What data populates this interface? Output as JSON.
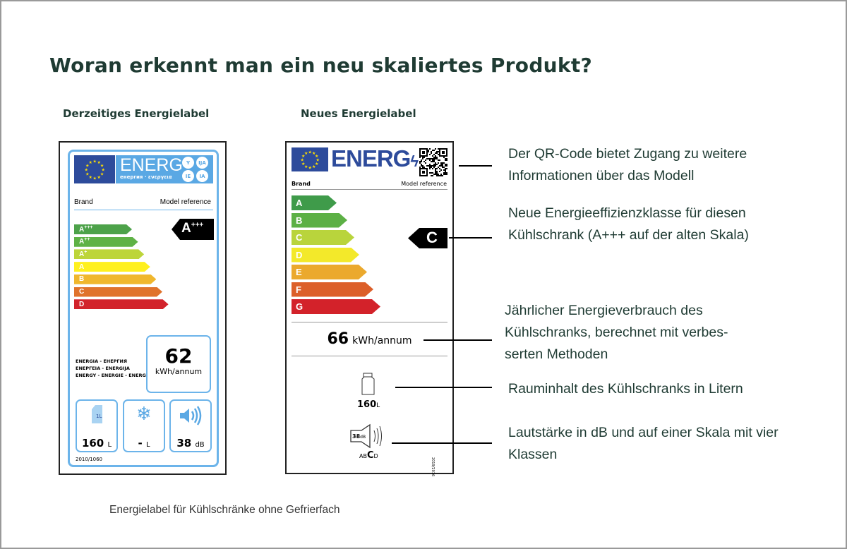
{
  "title": "Woran erkennt man ein neu skaliertes Produkt?",
  "old_label": {
    "heading": "Derzeitiges Energielabel",
    "energ": "ENERG",
    "energ_sub": "енергия · ενεργεια",
    "lang_badges": [
      "Y",
      "IJA",
      "IE",
      "IA"
    ],
    "brand": "Brand",
    "model": "Model reference",
    "classes": [
      {
        "label": "A",
        "sup": "+++",
        "color": "#4da24a"
      },
      {
        "label": "A",
        "sup": "++",
        "color": "#5fb246"
      },
      {
        "label": "A",
        "sup": "+",
        "color": "#bdd53a"
      },
      {
        "label": "A",
        "sup": "",
        "color": "#fff01e"
      },
      {
        "label": "B",
        "sup": "",
        "color": "#f0b72d"
      },
      {
        "label": "C",
        "sup": "",
        "color": "#e0732c"
      },
      {
        "label": "D",
        "sup": "",
        "color": "#d2232b"
      }
    ],
    "rating": "A",
    "rating_sup": "+++",
    "languages": [
      "ENERGIA - ЕНЕРГИЯ",
      "ΕΝΕΡΓΕΙΑ - ENERGIJA",
      "ENERGY - ENERGIE - ENERGI"
    ],
    "consumption": "62",
    "consumption_unit": "kWh/annum",
    "volume": "160",
    "volume_unit": "L",
    "freezer": "-",
    "freezer_unit": "L",
    "noise": "38",
    "noise_unit": "dB",
    "regulation": "2010/1060"
  },
  "new_label": {
    "heading": "Neues Energielabel",
    "energ": "ENERG",
    "brand": "Brand",
    "model": "Model reference",
    "classes": [
      {
        "label": "A",
        "color": "#3f9b4a"
      },
      {
        "label": "B",
        "color": "#5cb045"
      },
      {
        "label": "C",
        "color": "#b9d43c"
      },
      {
        "label": "D",
        "color": "#f3e92a"
      },
      {
        "label": "E",
        "color": "#eba92d"
      },
      {
        "label": "F",
        "color": "#dc5f29"
      },
      {
        "label": "G",
        "color": "#d3222a"
      }
    ],
    "rating": "C",
    "consumption": "66",
    "consumption_unit": "kWh/annum",
    "volume": "160",
    "volume_unit": "L",
    "noise": "38",
    "noise_unit": "dB",
    "noise_classes": [
      "A",
      "B",
      "C",
      "D"
    ],
    "noise_class_selected": "C",
    "regulation": "2019/2016"
  },
  "annotations": [
    "Der QR-Code bietet Zugang zu weitere Informationen über das Modell",
    "Neue Energieeffizienzklasse für diesen Kühlschrank (A+++ auf der alten Skala)",
    "Jährlicher Energieverbrauch des Kühlschranks, berechnet mit verbes- serten Methoden",
    "Rauminhalt des Kühlschranks in Litern",
    "Lautstärke in dB und auf einer Skala mit vier Klassen"
  ],
  "caption": "Energielabel für Kühlschränke ohne Gefrierfach",
  "colors": {
    "heading": "#1f3b33",
    "eu_blue": "#2d4b9b",
    "old_label_blue": "#5aa8e4"
  }
}
